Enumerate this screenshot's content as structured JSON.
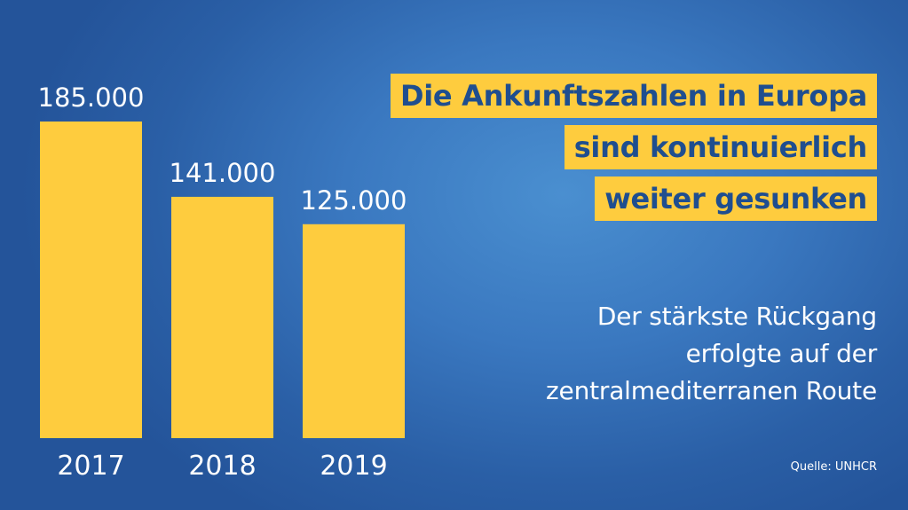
{
  "colors": {
    "bar": "#fecc3e",
    "title_bg": "#fecc3e",
    "title_text": "#1f4e8f",
    "text": "#ffffff"
  },
  "title_lines": [
    "Die Ankunftszahlen in Europa",
    "sind kontinuierlich",
    "weiter gesunken"
  ],
  "subtitle_lines": [
    "Der stärkste Rückgang",
    "erfolgte auf der",
    "zentralmediterranen Route"
  ],
  "source": "Quelle: UNHCR",
  "chart_data": {
    "type": "bar",
    "categories": [
      "2017",
      "2018",
      "2019"
    ],
    "values": [
      185000,
      141000,
      125000
    ],
    "value_labels": [
      "185.000",
      "141.000",
      "125.000"
    ],
    "ylim": [
      0,
      185000
    ],
    "grid": false,
    "title": "Die Ankunftszahlen in Europa sind kontinuierlich weiter gesunken"
  }
}
